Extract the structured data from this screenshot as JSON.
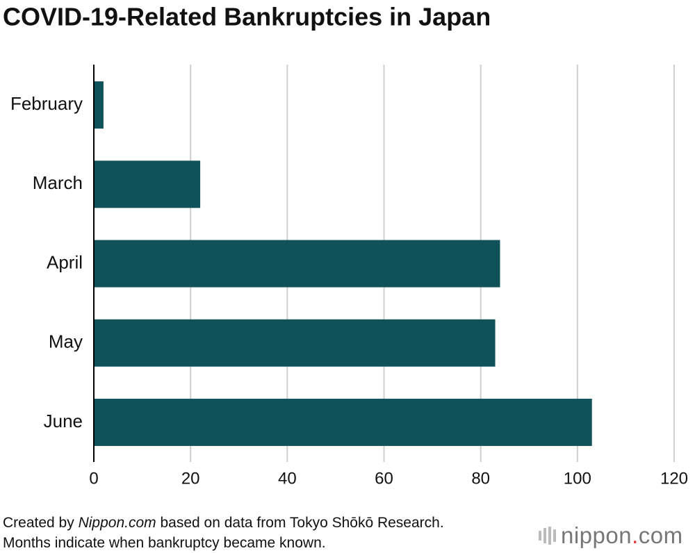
{
  "chart_data": {
    "type": "bar",
    "orientation": "horizontal",
    "title": "COVID-19-Related Bankruptcies in Japan",
    "categories": [
      "February",
      "March",
      "April",
      "May",
      "June"
    ],
    "values": [
      2,
      22,
      84,
      83,
      103
    ],
    "color": "#10525a",
    "xlim": [
      0,
      120
    ],
    "xticks": [
      0,
      20,
      40,
      60,
      80,
      100,
      120
    ],
    "grid": true,
    "source": {
      "prefix": "Created by",
      "site": "Nippon.com",
      "rest": "based on data from Tokyo Shōkō Research. Months indicate when bankruptcy became known."
    },
    "logo": {
      "name": "nippon",
      "dot": ".",
      "tld": "com"
    }
  }
}
